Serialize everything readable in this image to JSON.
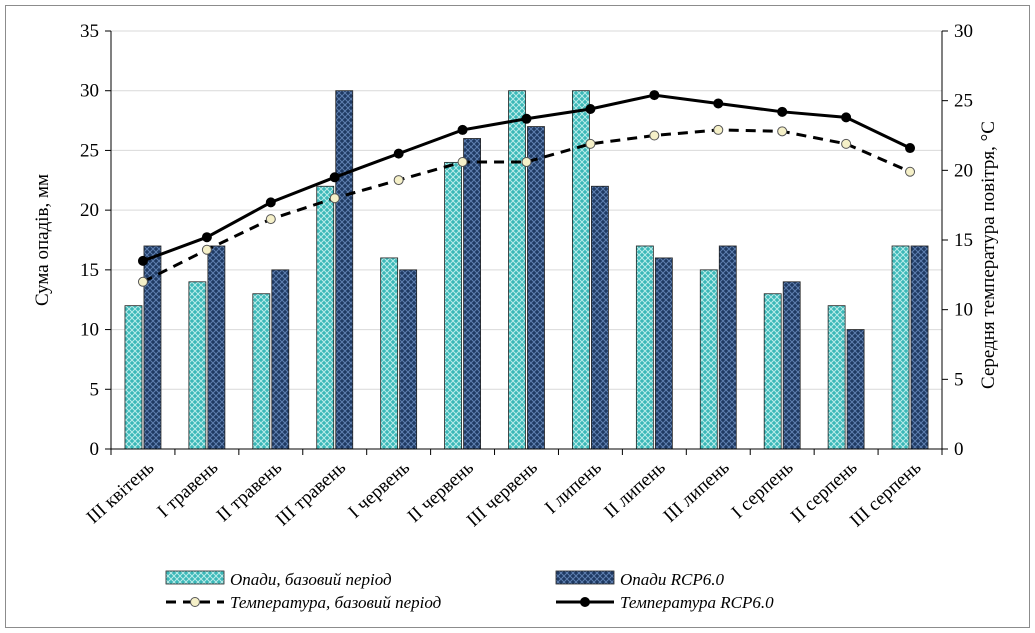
{
  "chart_data": {
    "type": "bar",
    "categories": [
      "III квітень",
      "I травень",
      "II травень",
      "III травень",
      "I червень",
      "II червень",
      "III червень",
      "I липень",
      "II липень",
      "III липень",
      "I серпень",
      "II серпень",
      "III серпень"
    ],
    "ylabel": "Сума опадів, мм",
    "y2label": "Середня температура повітря, °C",
    "ylim": [
      0,
      35
    ],
    "yticks": [
      "0",
      "5",
      "10",
      "15",
      "20",
      "25",
      "30",
      "35"
    ],
    "y2lim": [
      0,
      30
    ],
    "y2ticks": [
      "0",
      "5",
      "10",
      "15",
      "20",
      "25",
      "30"
    ],
    "legend_position": "bottom",
    "series": [
      {
        "name": "Опади, базовий період",
        "kind": "bar",
        "axis": "left",
        "color": "#3bb8b8",
        "values": [
          12,
          14,
          13,
          22,
          16,
          24,
          30,
          30,
          17,
          15,
          13,
          12,
          17
        ]
      },
      {
        "name": "Опади RCP6.0",
        "kind": "bar",
        "axis": "left",
        "color": "#1f3a63",
        "values": [
          17,
          17,
          15,
          30,
          15,
          26,
          27,
          22,
          16,
          17,
          14,
          10,
          17
        ]
      },
      {
        "name": "Температура, базовий період",
        "kind": "line",
        "axis": "right",
        "color": "#000000",
        "style": "dashed",
        "marker_color": "#f5f0c8",
        "values": [
          12,
          14.3,
          16.5,
          18,
          19.3,
          20.6,
          20.6,
          21.9,
          22.5,
          22.9,
          22.8,
          21.9,
          19.9
        ]
      },
      {
        "name": "Температура RCP6.0",
        "kind": "line",
        "axis": "right",
        "color": "#000000",
        "style": "solid",
        "marker_color": "#000000",
        "values": [
          13.5,
          15.2,
          17.7,
          19.5,
          21.2,
          22.9,
          23.7,
          24.4,
          25.4,
          24.8,
          24.2,
          23.8,
          21.6
        ]
      }
    ]
  }
}
